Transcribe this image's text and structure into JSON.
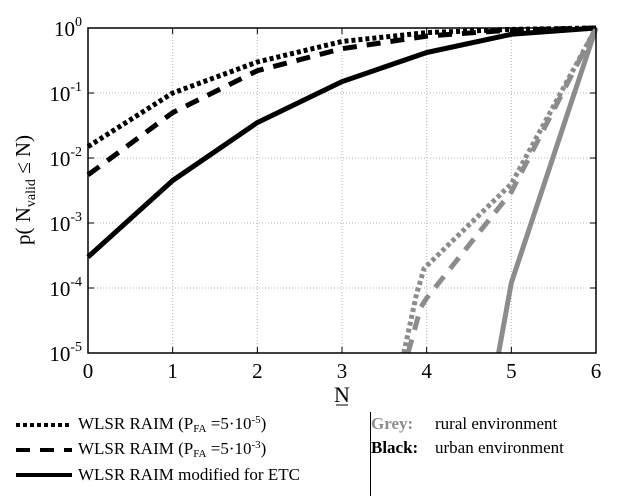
{
  "chart_data": {
    "type": "line",
    "xlabel": "N",
    "ylabel_parts": {
      "pre": "p( N",
      "sub": "valid",
      "post": " ≤ N)"
    },
    "xlim": [
      0,
      6
    ],
    "ylim": [
      1e-05,
      1
    ],
    "yscale": "log",
    "grid": true,
    "x_ticks": [
      0,
      1,
      2,
      3,
      4,
      5,
      6
    ],
    "y_ticks": [
      {
        "value": 1,
        "base": "10",
        "exp": "0"
      },
      {
        "value": 0.1,
        "base": "10",
        "exp": "-1"
      },
      {
        "value": 0.01,
        "base": "10",
        "exp": "-2"
      },
      {
        "value": 0.001,
        "base": "10",
        "exp": "-3"
      },
      {
        "value": 0.0001,
        "base": "10",
        "exp": "-4"
      },
      {
        "value": 1e-05,
        "base": "10",
        "exp": "-5"
      }
    ],
    "series": [
      {
        "style": "dotted",
        "color": "#000000",
        "env": "urban",
        "x": [
          0,
          1,
          2,
          3,
          4,
          5,
          6
        ],
        "y": [
          0.015,
          0.1,
          0.3,
          0.62,
          0.85,
          0.95,
          1.0
        ]
      },
      {
        "style": "dashed",
        "color": "#000000",
        "env": "urban",
        "x": [
          0,
          1,
          2,
          3,
          4,
          5,
          6
        ],
        "y": [
          0.0055,
          0.05,
          0.22,
          0.48,
          0.75,
          0.93,
          1.0
        ]
      },
      {
        "style": "solid",
        "color": "#000000",
        "env": "urban",
        "x": [
          0,
          1,
          2,
          3,
          4,
          5,
          6
        ],
        "y": [
          0.0003,
          0.0045,
          0.035,
          0.15,
          0.42,
          0.8,
          1.0
        ]
      },
      {
        "style": "dotted",
        "color": "#8c8c8c",
        "env": "rural",
        "x": [
          3.73,
          3.88,
          3.97,
          5.0,
          6.0
        ],
        "y": [
          1e-05,
          8e-05,
          0.0002,
          0.004,
          1.0
        ]
      },
      {
        "style": "dashed",
        "color": "#8c8c8c",
        "env": "rural",
        "x": [
          3.78,
          3.93,
          4.0,
          5.0,
          6.0
        ],
        "y": [
          1e-05,
          5e-05,
          7e-05,
          0.003,
          1.0
        ]
      },
      {
        "style": "solid",
        "color": "#8c8c8c",
        "env": "rural",
        "x": [
          4.85,
          5.0,
          6.0
        ],
        "y": [
          1e-05,
          0.00012,
          1.0
        ]
      }
    ]
  },
  "legend": {
    "entries": [
      {
        "style": "dotted",
        "text": "WLSR RAIM (P",
        "sub": "FA",
        "mid": " =5·10",
        "sup": "-5",
        "end": ")"
      },
      {
        "style": "dashed",
        "text": "WLSR RAIM (P",
        "sub": "FA",
        "mid": " =5·10",
        "sup": "-3",
        "end": ")"
      },
      {
        "style": "solid",
        "text": "WLSR RAIM modified for ETC",
        "sub": "",
        "mid": "",
        "sup": "",
        "end": ""
      }
    ],
    "environments": [
      {
        "key": "Grey:",
        "value": "rural environment",
        "color": "#8c8c8c"
      },
      {
        "key": "Black:",
        "value": "urban environment",
        "color": "#000000"
      }
    ]
  }
}
